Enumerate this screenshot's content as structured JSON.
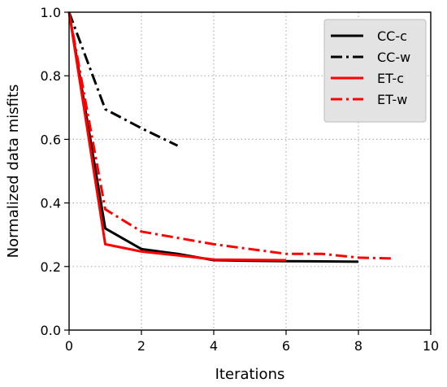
{
  "chart_data": {
    "type": "line",
    "xlabel": "Iterations",
    "ylabel": "Normalized data misfits",
    "xlim": [
      0,
      10
    ],
    "ylim": [
      0.0,
      1.0
    ],
    "xticks": [
      "0",
      "2",
      "4",
      "6",
      "8",
      "10"
    ],
    "yticks": [
      "0.0",
      "0.2",
      "0.4",
      "0.6",
      "0.8",
      "1.0"
    ],
    "grid": true,
    "legend_position": "top-right",
    "series": [
      {
        "name": "CC-c",
        "color": "#000000",
        "style": "solid",
        "x": [
          0,
          1,
          2,
          3,
          4,
          5,
          6,
          7,
          8
        ],
        "y": [
          1.0,
          0.32,
          0.255,
          0.24,
          0.22,
          0.218,
          0.217,
          0.216,
          0.215
        ]
      },
      {
        "name": "CC-w",
        "color": "#000000",
        "style": "dashdot",
        "x": [
          0,
          1,
          2,
          3
        ],
        "y": [
          1.0,
          0.695,
          0.635,
          0.58
        ]
      },
      {
        "name": "ET-c",
        "color": "#ff0000",
        "style": "solid",
        "x": [
          0,
          1,
          2,
          3,
          4,
          5,
          6
        ],
        "y": [
          1.0,
          0.27,
          0.247,
          0.235,
          0.222,
          0.221,
          0.22
        ]
      },
      {
        "name": "ET-w",
        "color": "#ff0000",
        "style": "dashdot",
        "x": [
          0,
          1,
          2,
          3,
          4,
          5,
          6,
          7,
          8,
          9
        ],
        "y": [
          1.0,
          0.38,
          0.31,
          0.29,
          0.27,
          0.255,
          0.24,
          0.24,
          0.228,
          0.225
        ]
      }
    ]
  }
}
